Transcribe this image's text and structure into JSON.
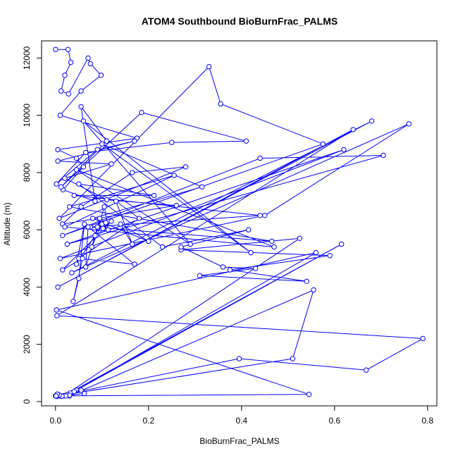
{
  "chart_data": {
    "type": "line",
    "title": "ATOM4 Southbound BioBurnFrac_PALMS",
    "xlabel": "BioBurnFrac_PALMS",
    "ylabel": "Altitude (m)",
    "xlim": [
      -0.03,
      0.82
    ],
    "ylim": [
      -150,
      12600
    ],
    "xticks": [
      0.0,
      0.2,
      0.4,
      0.6,
      0.8
    ],
    "xtick_labels": [
      "0.0",
      "0.2",
      "0.4",
      "0.6",
      "0.8"
    ],
    "yticks": [
      0,
      2000,
      4000,
      6000,
      8000,
      10000,
      12000
    ],
    "ytick_labels": [
      "0",
      "2000",
      "4000",
      "6000",
      "8000",
      "10000",
      "12000"
    ],
    "grid": false,
    "line_color": "#0000ff",
    "marker": "open-circle",
    "series": [
      {
        "x": [
          0.0,
          0.027,
          0.033,
          0.02,
          0.012,
          0.028,
          0.07,
          0.075,
          0.098,
          0.055,
          0.01,
          0.175,
          0.005,
          0.045,
          0.06,
          0.016,
          0.085,
          0.055,
          0.11,
          0.012,
          0.185,
          0.41,
          0.25,
          0.065,
          0.002,
          0.09,
          0.17,
          0.005,
          0.12,
          0.02,
          0.11,
          0.26,
          0.015,
          0.055,
          0.165,
          0.28,
          0.008,
          0.33,
          0.355,
          0.575,
          0.015,
          0.44,
          0.705,
          0.025,
          0.62,
          0.01,
          0.45,
          0.76,
          0.035,
          0.68,
          0.005,
          0.64,
          0.003,
          0.79,
          0.668,
          0.395,
          0.005,
          0.51,
          0.555,
          0.03,
          0.545,
          0.002,
          0.56,
          0.045,
          0.615,
          0.018,
          0.525,
          0.27,
          0.59,
          0.375,
          0.54,
          0.31,
          0.43,
          0.36,
          0.27,
          0.415,
          0.23,
          0.05,
          0.212,
          0.04,
          0.44,
          0.075,
          0.465,
          0.03,
          0.255,
          0.02,
          0.47,
          0.045,
          0.29,
          0.06,
          0.42,
          0.1,
          0.315,
          0.08,
          0.2,
          0.14,
          0.165,
          0.13,
          0.18,
          0.05,
          0.17,
          0.07,
          0.065,
          0.105,
          0.113,
          0.1,
          0.088,
          0.078,
          0.09,
          0.095,
          0.108,
          0.102,
          0.12,
          0.015,
          0.058,
          0.038,
          0.05,
          0.062,
          0.045,
          0.085
        ],
        "y": [
          12300,
          12300,
          11850,
          11400,
          10850,
          10750,
          12000,
          11800,
          11400,
          10850,
          10000,
          9200,
          8800,
          8500,
          8200,
          7400,
          7000,
          10300,
          9100,
          7500,
          10100,
          9100,
          9050,
          8700,
          7600,
          8800,
          9100,
          8400,
          8300,
          7800,
          7050,
          6850,
          6200,
          6800,
          8000,
          8200,
          6400,
          11700,
          10400,
          9000,
          5800,
          8500,
          8600,
          5500,
          8800,
          5000,
          6500,
          9700,
          4500,
          9800,
          4000,
          9500,
          3000,
          2200,
          1100,
          1500,
          200,
          1500,
          3900,
          200,
          250,
          3200,
          5200,
          400,
          5500,
          200,
          5700,
          5300,
          5100,
          4600,
          4200,
          4400,
          4650,
          4700,
          5400,
          6000,
          5400,
          7600,
          7200,
          7200,
          6500,
          6100,
          5600,
          6800,
          7900,
          6100,
          5400,
          8100,
          5500,
          9800,
          5200,
          9000,
          7500,
          6400,
          5600,
          6200,
          5500,
          7000,
          6400,
          5000,
          4800,
          6100,
          4700,
          6800,
          6000,
          6200,
          5800,
          5400,
          6100,
          6400,
          6250,
          6050,
          6300,
          4600,
          5000,
          3500,
          4300,
          6200,
          4800,
          5800
        ]
      },
      {
        "x": [
          0.0,
          0.003,
          0.008,
          0.012,
          0.018,
          0.025,
          0.032,
          0.04,
          0.055,
          0.062,
          0.03,
          0.022,
          0.014,
          0.008,
          0.004,
          0.001
        ],
        "y": [
          200,
          180,
          220,
          190,
          210,
          250,
          300,
          350,
          400,
          280,
          220,
          200,
          190,
          230,
          260,
          200
        ]
      }
    ],
    "annotations": []
  }
}
